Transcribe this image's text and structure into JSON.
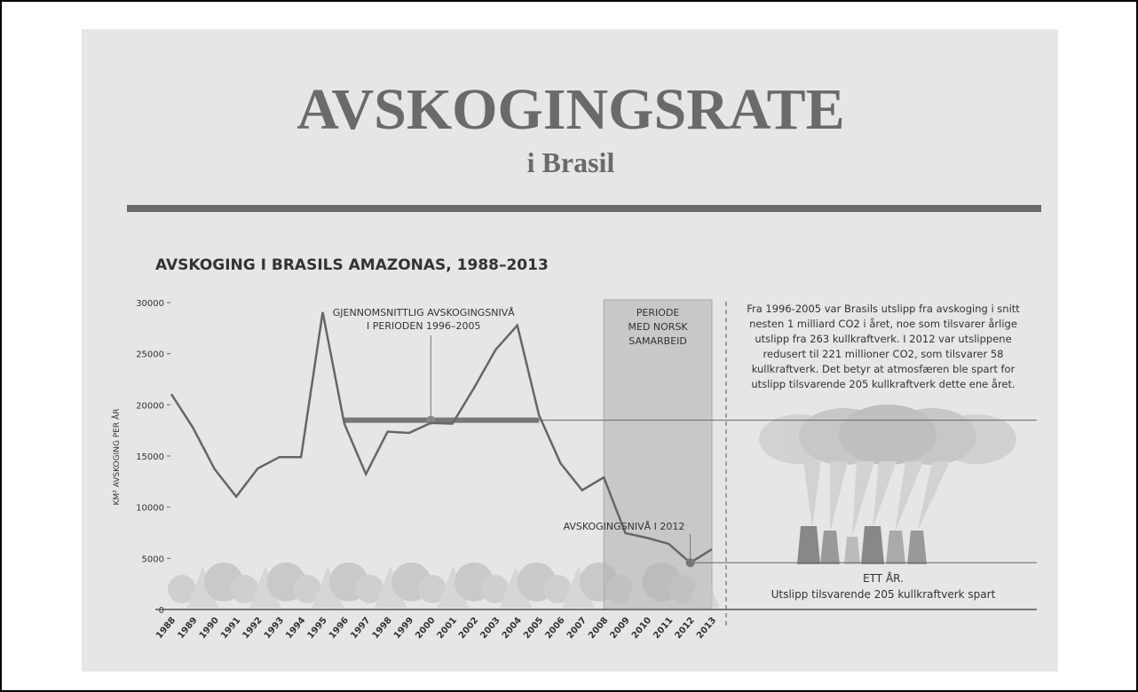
{
  "header": {
    "title": "AVSKOGINGSRATE",
    "subtitle": "i Brasil"
  },
  "chart_data": {
    "type": "line",
    "title": "AVSKOGING I BRASILS AMAZONAS, 1988–2013",
    "ylabel": "KM² AVSKOGING PER ÅR",
    "categories": [
      "1988",
      "1989",
      "1990",
      "1991",
      "1992",
      "1993",
      "1994",
      "1995",
      "1996",
      "1997",
      "1998",
      "1999",
      "2000",
      "2001",
      "2002",
      "2003",
      "2004",
      "2005",
      "2006",
      "2007",
      "2008",
      "2009",
      "2010",
      "2011",
      "2012",
      "2013"
    ],
    "series": [
      {
        "name": "Avskoging",
        "color": "#666666",
        "values": [
          21050,
          17770,
          13730,
          11030,
          13786,
          14896,
          14896,
          29059,
          18161,
          13227,
          17383,
          17259,
          18226,
          18165,
          21651,
          25396,
          27772,
          19014,
          14286,
          11651,
          12911,
          7464,
          7000,
          6418,
          4571,
          5891
        ]
      }
    ],
    "ylim": [
      0,
      30000
    ],
    "yticks": [
      0,
      5000,
      10000,
      15000,
      20000,
      25000,
      30000
    ],
    "average": {
      "label": [
        "GJENNOMSNITTLIG AVSKOGINGSNIVÅ",
        "I PERIODEN 1996–2005"
      ],
      "value": 18500
    },
    "period_label": [
      "PERIODE",
      "MED NORSK",
      "SAMARBEID"
    ],
    "annotation_2012": "AVSKOGINGSNIVÅ I 2012"
  },
  "side": {
    "text": [
      "Fra 1996-2005 var Brasils utslipp fra avskoging i snitt",
      "nesten 1 milliard CO2 i året, noe som tilsvarer årlige",
      "utslipp fra 263 kullkraftverk. I 2012 var utslippene",
      "redusert til 221 millioner CO2, som tilsvarer 58",
      "kullkraftverk. Det betyr at atmosfæren ble spart for",
      "utslipp tilsvarende 205 kullkraftverk dette ene året."
    ],
    "caption": [
      "ETT ÅR.",
      "Utslipp tilsvarende 205 kullkraftverk spart"
    ]
  }
}
